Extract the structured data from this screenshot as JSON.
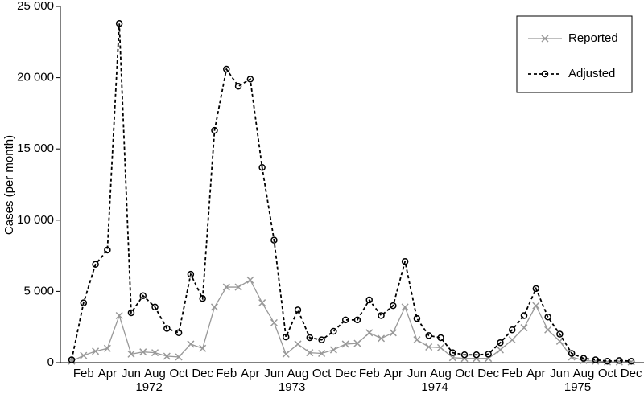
{
  "chart_data": {
    "type": "line",
    "y_label": "Cases (per month)",
    "categories": [
      null,
      "Feb",
      null,
      "Apr",
      null,
      "Jun",
      null,
      "Aug",
      null,
      "Oct",
      null,
      "Dec",
      null,
      "Feb",
      null,
      "Apr",
      null,
      "Jun",
      null,
      "Aug",
      null,
      "Oct",
      null,
      "Dec",
      null,
      "Feb",
      null,
      "Apr",
      null,
      "Jun",
      null,
      "Aug",
      null,
      "Oct",
      null,
      "Dec",
      null,
      "Feb",
      null,
      "Apr",
      null,
      "Jun",
      null,
      "Aug",
      null,
      "Oct",
      null,
      "Dec"
    ],
    "years": [
      "1972",
      "1973",
      "1974",
      "1975"
    ],
    "series": [
      {
        "name": "Reported",
        "color": "#999999",
        "dash": false,
        "marker": "x",
        "values": [
          100,
          500,
          800,
          1000,
          3300,
          600,
          750,
          700,
          450,
          400,
          1300,
          1000,
          3900,
          5300,
          5300,
          5800,
          4200,
          2800,
          600,
          1300,
          700,
          650,
          900,
          1300,
          1350,
          2100,
          1700,
          2100,
          3900,
          1600,
          1100,
          1050,
          350,
          300,
          300,
          300,
          900,
          1600,
          2450,
          4000,
          2300,
          1500,
          400,
          150,
          100,
          50,
          50,
          50
        ]
      },
      {
        "name": "Adjusted",
        "color": "#000000",
        "dash": true,
        "marker": "o",
        "values": [
          200,
          4200,
          6900,
          7900,
          23800,
          3500,
          4700,
          3900,
          2400,
          2100,
          6200,
          4500,
          16300,
          20600,
          19400,
          19900,
          13700,
          8600,
          1800,
          3700,
          1750,
          1600,
          2200,
          3000,
          3000,
          4400,
          3300,
          4000,
          7100,
          3100,
          1900,
          1750,
          700,
          550,
          550,
          600,
          1400,
          2300,
          3300,
          5200,
          3200,
          2000,
          650,
          300,
          200,
          100,
          150,
          100
        ]
      }
    ],
    "ylim": [
      0,
      25000
    ],
    "yticks": [
      0,
      {
        "value": 5000,
        "label": "5 000"
      },
      {
        "value": 10000,
        "label": "10 000"
      },
      {
        "value": 15000,
        "label": "15 000"
      },
      {
        "value": 20000,
        "label": "20 000"
      },
      {
        "value": 25000,
        "label": "25 000"
      }
    ],
    "legend": "upper right"
  }
}
